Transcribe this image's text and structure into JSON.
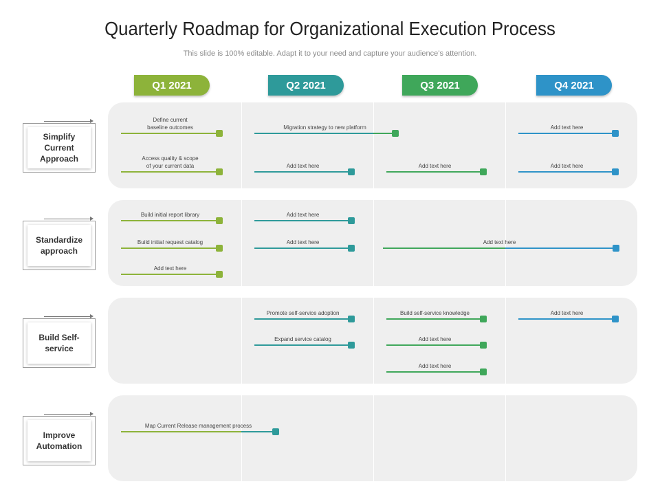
{
  "title": "Quarterly Roadmap for Organizational Execution Process",
  "subtitle": "This slide is 100% editable. Adapt it to your need and capture your audience’s attention.",
  "quarters": [
    {
      "label": "Q1 2021",
      "color": "#8db33a"
    },
    {
      "label": "Q2 2021",
      "color": "#2e9a9a"
    },
    {
      "label": "Q3 2021",
      "color": "#3fa75a"
    },
    {
      "label": "Q4 2021",
      "color": "#2e93c8"
    }
  ],
  "rows": [
    {
      "label": "Simplify\nCurrent\nApproach"
    },
    {
      "label": "Standardize\napproach"
    },
    {
      "label": "Build Self-\nservice"
    },
    {
      "label": "Improve\nAutomation"
    }
  ],
  "tasks": [
    {
      "row": 0,
      "text": "Define current\nbaseline  outcomes",
      "start_q": 1,
      "end_q": 1,
      "slot": 0,
      "quarter": 0
    },
    {
      "row": 0,
      "text": "Access  quality & scope\nof your current data",
      "start_q": 1,
      "end_q": 1,
      "slot": 1,
      "quarter": 0
    },
    {
      "row": 0,
      "text": "Migration  strategy  to new platform",
      "start_q": 2,
      "end_q": 3,
      "slot": 0,
      "quarter": 1
    },
    {
      "row": 0,
      "text": "Add text  here",
      "start_q": 2,
      "end_q": 2,
      "slot": 1,
      "quarter": 1
    },
    {
      "row": 0,
      "text": "Add text  here",
      "start_q": 3,
      "end_q": 3,
      "slot": 1,
      "quarter": 2
    },
    {
      "row": 0,
      "text": "Add text  here",
      "start_q": 4,
      "end_q": 4,
      "slot": 0,
      "quarter": 3
    },
    {
      "row": 0,
      "text": "Add text  here",
      "start_q": 4,
      "end_q": 4,
      "slot": 1,
      "quarter": 3
    },
    {
      "row": 1,
      "text": "Build initial report library",
      "start_q": 1,
      "end_q": 1,
      "slot": 0,
      "quarter": 0
    },
    {
      "row": 1,
      "text": "Build initial request catalog",
      "start_q": 1,
      "end_q": 1,
      "slot": 1,
      "quarter": 0
    },
    {
      "row": 1,
      "text": "Add text  here",
      "start_q": 1,
      "end_q": 1,
      "slot": 2,
      "quarter": 0
    },
    {
      "row": 1,
      "text": "Add text  here",
      "start_q": 2,
      "end_q": 2,
      "slot": 0,
      "quarter": 1
    },
    {
      "row": 1,
      "text": "Add text  here",
      "start_q": 2,
      "end_q": 2,
      "slot": 1,
      "quarter": 1
    },
    {
      "row": 1,
      "text": "Add text  here",
      "start_q": 3,
      "end_q": 4,
      "slot": 1,
      "quarter": 2
    },
    {
      "row": 2,
      "text": "Promote self-service adoption",
      "start_q": 2,
      "end_q": 2,
      "slot": 0,
      "quarter": 1
    },
    {
      "row": 2,
      "text": "Expand service catalog",
      "start_q": 2,
      "end_q": 2,
      "slot": 1,
      "quarter": 1
    },
    {
      "row": 2,
      "text": "Build self-service  knowledge",
      "start_q": 3,
      "end_q": 3,
      "slot": 0,
      "quarter": 2
    },
    {
      "row": 2,
      "text": "Add text  here",
      "start_q": 3,
      "end_q": 3,
      "slot": 1,
      "quarter": 2
    },
    {
      "row": 2,
      "text": "Add text  here",
      "start_q": 3,
      "end_q": 3,
      "slot": 2,
      "quarter": 2
    },
    {
      "row": 2,
      "text": "Add text  here",
      "start_q": 4,
      "end_q": 4,
      "slot": 0,
      "quarter": 3
    },
    {
      "row": 3,
      "text": "Map Current Release  management  process",
      "start_q": 1,
      "end_q": 2,
      "slot": 0,
      "quarter": 0
    }
  ]
}
